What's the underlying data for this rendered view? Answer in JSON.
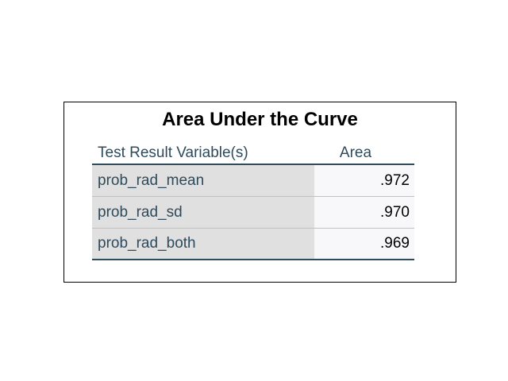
{
  "title": "Area Under the Curve",
  "columns": {
    "variable": "Test Result Variable(s)",
    "area": "Area"
  },
  "rows": [
    {
      "variable": "prob_rad_mean",
      "area": ".972"
    },
    {
      "variable": "prob_rad_sd",
      "area": ".970"
    },
    {
      "variable": "prob_rad_both",
      "area": ".969"
    }
  ],
  "colors": {
    "label_text": "#2e4a5b",
    "rule": "#2f4b5c",
    "label_cell_bg": "#e0e0e0",
    "value_cell_bg": "#f8f8fa"
  }
}
